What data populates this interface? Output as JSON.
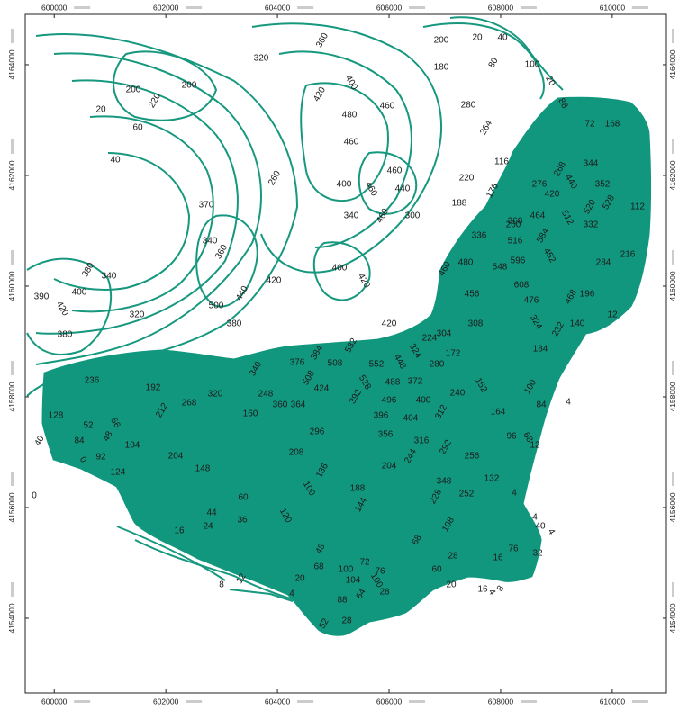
{
  "map": {
    "x_ticks": [
      600000,
      602000,
      604000,
      606000,
      608000,
      610000
    ],
    "y_ticks": [
      4154000,
      4156000,
      4158000,
      4160000,
      4162000,
      4164000
    ],
    "xlim": [
      599480,
      610970
    ],
    "ylim": [
      4152650,
      4164910
    ],
    "contour_labels": [
      360,
      320,
      200,
      20,
      40,
      80,
      100,
      20,
      180,
      200,
      220,
      200,
      20,
      60,
      400,
      420,
      480,
      460,
      460,
      280,
      264,
      88,
      72,
      168,
      40,
      260,
      400,
      460,
      460,
      440,
      460,
      340,
      300,
      220,
      116,
      176,
      188,
      370,
      260,
      276,
      268,
      344,
      440,
      352,
      420,
      528,
      112,
      368,
      464,
      512,
      520,
      332,
      336,
      516,
      596,
      584,
      452,
      284,
      216,
      340,
      360,
      400,
      420,
      420,
      480,
      460,
      548,
      608,
      476,
      456,
      468,
      196,
      12,
      390,
      400,
      380,
      340,
      420,
      380,
      320,
      440,
      500,
      380,
      308,
      324,
      232,
      140,
      420,
      304,
      224,
      532,
      324,
      172,
      184,
      508,
      384,
      376,
      552,
      448,
      280,
      340,
      236,
      192,
      320,
      268,
      212,
      248,
      160,
      360,
      364,
      508,
      424,
      528,
      488,
      372,
      392,
      496,
      400,
      240,
      152,
      100,
      84,
      4,
      128,
      52,
      48,
      56,
      164,
      396,
      404,
      312,
      356,
      96,
      68,
      12,
      40,
      84,
      104,
      296,
      316,
      292,
      256,
      92,
      204,
      208,
      244,
      204,
      0,
      148,
      124,
      136,
      132,
      348,
      188,
      100,
      228,
      252,
      4,
      0,
      60,
      144,
      120,
      44,
      36,
      24,
      108,
      4,
      40,
      4,
      16,
      68,
      76,
      32,
      16,
      28,
      48,
      72,
      100,
      68,
      76,
      12,
      60,
      100,
      104,
      20,
      64,
      8,
      28,
      20,
      4,
      8,
      16,
      4,
      88,
      28,
      52
    ]
  }
}
